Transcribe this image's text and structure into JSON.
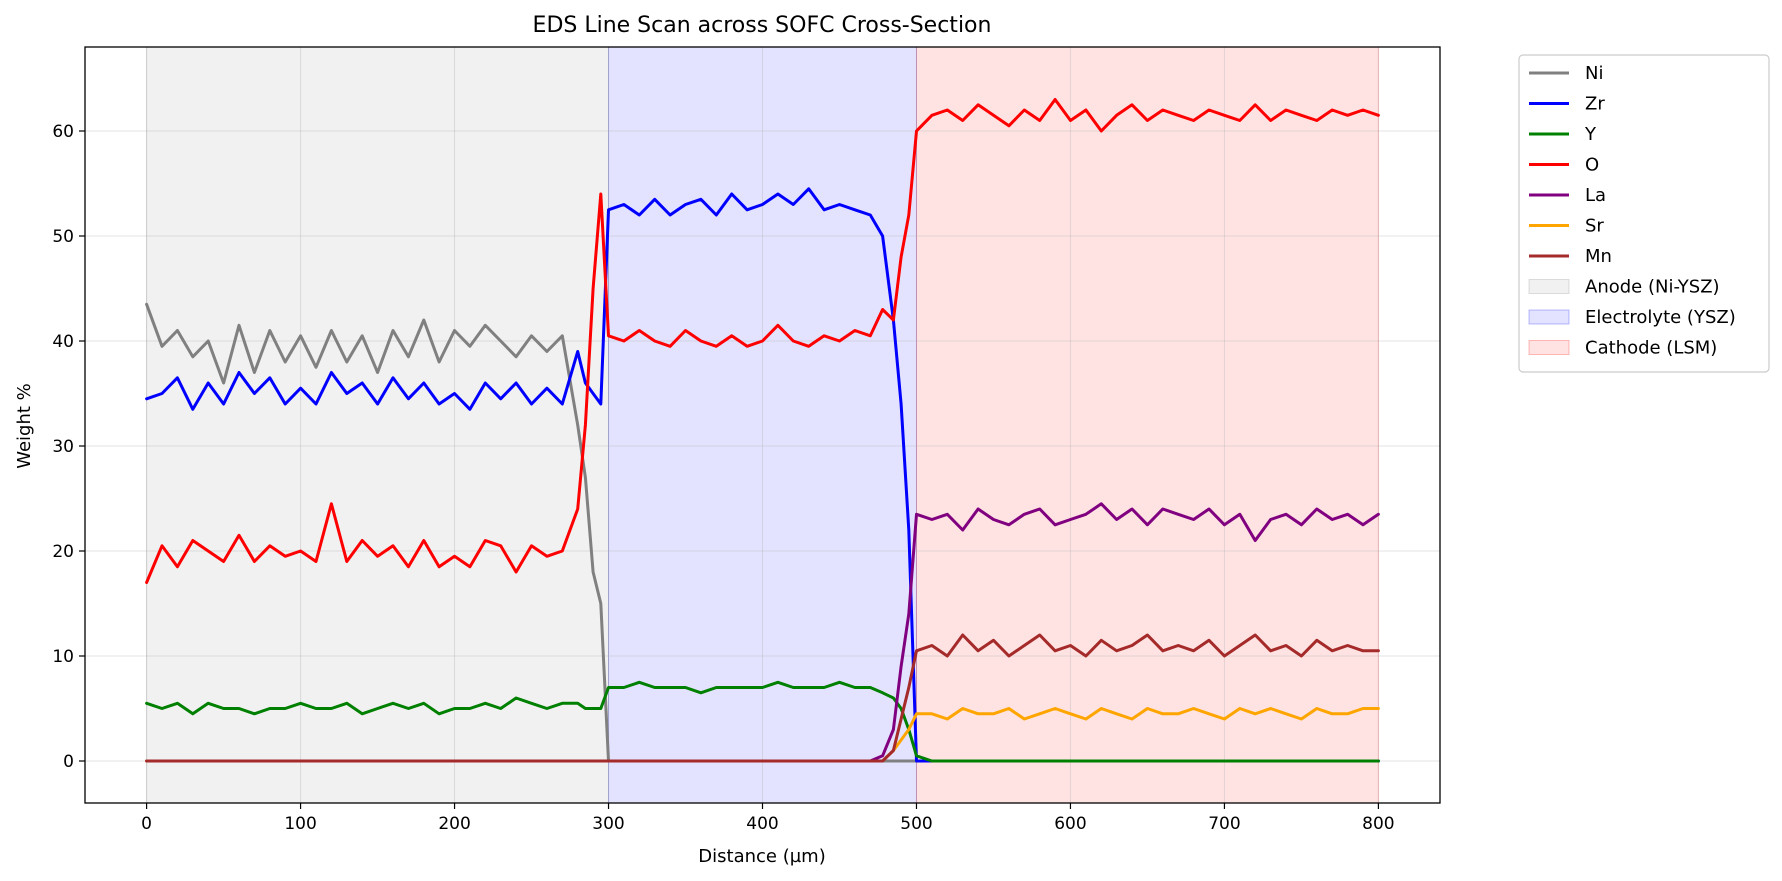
{
  "chart_data": {
    "type": "line",
    "title": "EDS Line Scan across SOFC Cross-Section",
    "xlabel": "Distance (µm)",
    "ylabel": "Weight %",
    "xlim": [
      -40,
      840
    ],
    "ylim": [
      -4,
      68
    ],
    "xticks": [
      0,
      100,
      200,
      300,
      400,
      500,
      600,
      700,
      800
    ],
    "yticks": [
      0,
      10,
      20,
      30,
      40,
      50,
      60
    ],
    "grid": true,
    "legend_position": "outside-top-right",
    "regions": [
      {
        "name": "Anode (Ni-YSZ)",
        "x_start": 0,
        "x_end": 300,
        "color": "#808080"
      },
      {
        "name": "Electrolyte (YSZ)",
        "x_start": 300,
        "x_end": 500,
        "color": "#0000ff"
      },
      {
        "name": "Cathode (LSM)",
        "x_start": 500,
        "x_end": 800,
        "color": "#ff0000"
      }
    ],
    "x": [
      0,
      10,
      20,
      30,
      40,
      50,
      60,
      70,
      80,
      90,
      100,
      110,
      120,
      130,
      140,
      150,
      160,
      170,
      180,
      190,
      200,
      210,
      220,
      230,
      240,
      250,
      260,
      270,
      280,
      285,
      290,
      295,
      300,
      310,
      320,
      330,
      340,
      350,
      360,
      370,
      380,
      390,
      400,
      410,
      420,
      430,
      440,
      450,
      460,
      470,
      478,
      485,
      490,
      495,
      500,
      510,
      520,
      530,
      540,
      550,
      560,
      570,
      580,
      590,
      600,
      610,
      620,
      630,
      640,
      650,
      660,
      670,
      680,
      690,
      700,
      710,
      720,
      730,
      740,
      750,
      760,
      770,
      780,
      790,
      800
    ],
    "series": [
      {
        "name": "Ni",
        "color": "#808080",
        "values": [
          43.5,
          39.5,
          41,
          38.5,
          40,
          36,
          41.5,
          37,
          41,
          38,
          40.5,
          37.5,
          41,
          38,
          40.5,
          37,
          41,
          38.5,
          42,
          38,
          41,
          39.5,
          41.5,
          40,
          38.5,
          40.5,
          39,
          40.5,
          32,
          27,
          18,
          15,
          0,
          0,
          0,
          0,
          0,
          0,
          0,
          0,
          0,
          0,
          0,
          0,
          0,
          0,
          0,
          0,
          0,
          0,
          0,
          0,
          0,
          0,
          0,
          0,
          0,
          0,
          0,
          0,
          0,
          0,
          0,
          0,
          0,
          0,
          0,
          0,
          0,
          0,
          0,
          0,
          0,
          0,
          0,
          0,
          0,
          0,
          0,
          0,
          0,
          0,
          0,
          0,
          0
        ]
      },
      {
        "name": "Zr",
        "color": "#0000ff",
        "values": [
          34.5,
          35,
          36.5,
          33.5,
          36,
          34,
          37,
          35,
          36.5,
          34,
          35.5,
          34,
          37,
          35,
          36,
          34,
          36.5,
          34.5,
          36,
          34,
          35,
          33.5,
          36,
          34.5,
          36,
          34,
          35.5,
          34,
          39,
          36,
          35,
          34,
          52.5,
          53,
          52,
          53.5,
          52,
          53,
          53.5,
          52,
          54,
          52.5,
          53,
          54,
          53,
          54.5,
          52.5,
          53,
          52.5,
          52,
          50,
          42,
          34,
          22,
          0,
          0,
          0,
          0,
          0,
          0,
          0,
          0,
          0,
          0,
          0,
          0,
          0,
          0,
          0,
          0,
          0,
          0,
          0,
          0,
          0,
          0,
          0,
          0,
          0,
          0,
          0,
          0,
          0,
          0,
          0
        ]
      },
      {
        "name": "Y",
        "color": "#008000",
        "values": [
          5.5,
          5,
          5.5,
          4.5,
          5.5,
          5,
          5,
          4.5,
          5,
          5,
          5.5,
          5,
          5,
          5.5,
          4.5,
          5,
          5.5,
          5,
          5.5,
          4.5,
          5,
          5,
          5.5,
          5,
          6,
          5.5,
          5,
          5.5,
          5.5,
          5,
          5,
          5,
          7,
          7,
          7.5,
          7,
          7,
          7,
          6.5,
          7,
          7,
          7,
          7,
          7.5,
          7,
          7,
          7,
          7.5,
          7,
          7,
          6.5,
          6,
          5,
          3,
          0.5,
          0,
          0,
          0,
          0,
          0,
          0,
          0,
          0,
          0,
          0,
          0,
          0,
          0,
          0,
          0,
          0,
          0,
          0,
          0,
          0,
          0,
          0,
          0,
          0,
          0,
          0,
          0,
          0,
          0,
          0
        ]
      },
      {
        "name": "O",
        "color": "#ff0000",
        "values": [
          17,
          20.5,
          18.5,
          21,
          20,
          19,
          21.5,
          19,
          20.5,
          19.5,
          20,
          19,
          24.5,
          19,
          21,
          19.5,
          20.5,
          18.5,
          21,
          18.5,
          19.5,
          18.5,
          21,
          20.5,
          18,
          20.5,
          19.5,
          20,
          24,
          32,
          45,
          54,
          40.5,
          40,
          41,
          40,
          39.5,
          41,
          40,
          39.5,
          40.5,
          39.5,
          40,
          41.5,
          40,
          39.5,
          40.5,
          40,
          41,
          40.5,
          43,
          42,
          48,
          52,
          60,
          61.5,
          62,
          61,
          62.5,
          61.5,
          60.5,
          62,
          61,
          63,
          61,
          62,
          60,
          61.5,
          62.5,
          61,
          62,
          61.5,
          61,
          62,
          61.5,
          61,
          62.5,
          61,
          62,
          61.5,
          61,
          62,
          61.5,
          62,
          61.5
        ]
      },
      {
        "name": "La",
        "color": "#800080",
        "values": [
          0,
          0,
          0,
          0,
          0,
          0,
          0,
          0,
          0,
          0,
          0,
          0,
          0,
          0,
          0,
          0,
          0,
          0,
          0,
          0,
          0,
          0,
          0,
          0,
          0,
          0,
          0,
          0,
          0,
          0,
          0,
          0,
          0,
          0,
          0,
          0,
          0,
          0,
          0,
          0,
          0,
          0,
          0,
          0,
          0,
          0,
          0,
          0,
          0,
          0,
          0.5,
          3,
          9,
          14,
          23.5,
          23,
          23.5,
          22,
          24,
          23,
          22.5,
          23.5,
          24,
          22.5,
          23,
          23.5,
          24.5,
          23,
          24,
          22.5,
          24,
          23.5,
          23,
          24,
          22.5,
          23.5,
          21,
          23,
          23.5,
          22.5,
          24,
          23,
          23.5,
          22.5,
          23.5
        ]
      },
      {
        "name": "Sr",
        "color": "#ffa500",
        "values": [
          0,
          0,
          0,
          0,
          0,
          0,
          0,
          0,
          0,
          0,
          0,
          0,
          0,
          0,
          0,
          0,
          0,
          0,
          0,
          0,
          0,
          0,
          0,
          0,
          0,
          0,
          0,
          0,
          0,
          0,
          0,
          0,
          0,
          0,
          0,
          0,
          0,
          0,
          0,
          0,
          0,
          0,
          0,
          0,
          0,
          0,
          0,
          0,
          0,
          0,
          0,
          1,
          2,
          3,
          4.5,
          4.5,
          4,
          5,
          4.5,
          4.5,
          5,
          4,
          4.5,
          5,
          4.5,
          4,
          5,
          4.5,
          4,
          5,
          4.5,
          4.5,
          5,
          4.5,
          4,
          5,
          4.5,
          5,
          4.5,
          4,
          5,
          4.5,
          4.5,
          5,
          5
        ]
      },
      {
        "name": "Mn",
        "color": "#a52a2a",
        "values": [
          0,
          0,
          0,
          0,
          0,
          0,
          0,
          0,
          0,
          0,
          0,
          0,
          0,
          0,
          0,
          0,
          0,
          0,
          0,
          0,
          0,
          0,
          0,
          0,
          0,
          0,
          0,
          0,
          0,
          0,
          0,
          0,
          0,
          0,
          0,
          0,
          0,
          0,
          0,
          0,
          0,
          0,
          0,
          0,
          0,
          0,
          0,
          0,
          0,
          0,
          0,
          1,
          4,
          7,
          10.5,
          11,
          10,
          12,
          10.5,
          11.5,
          10,
          11,
          12,
          10.5,
          11,
          10,
          11.5,
          10.5,
          11,
          12,
          10.5,
          11,
          10.5,
          11.5,
          10,
          11,
          12,
          10.5,
          11,
          10,
          11.5,
          10.5,
          11,
          10.5,
          10.5
        ]
      }
    ]
  }
}
